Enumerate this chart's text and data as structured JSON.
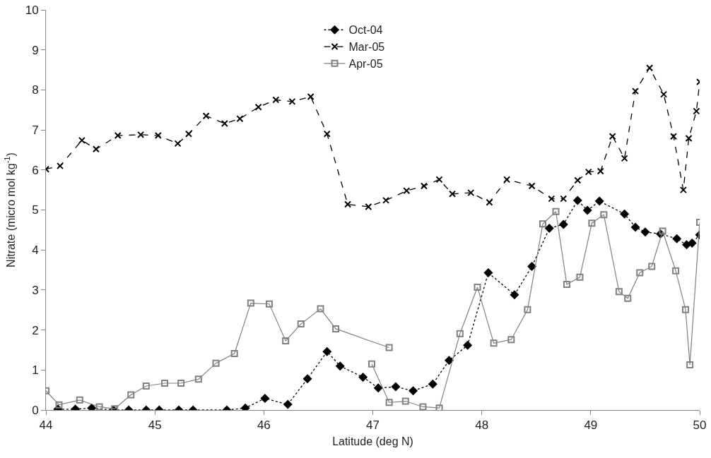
{
  "chart_data": {
    "type": "line",
    "xlabel": "Latitude (deg N)",
    "ylabel": "Nitrate (micro mol kg$^{-1}$)",
    "xlim": [
      44,
      50
    ],
    "xticks": [
      44,
      45,
      46,
      47,
      48,
      49,
      50
    ],
    "ylim": [
      0,
      10
    ],
    "yticks": [
      0,
      1,
      2,
      3,
      4,
      5,
      6,
      7,
      8,
      9,
      10
    ],
    "grid": false,
    "legend": "top",
    "series": [
      {
        "name": "Oct-04",
        "color": "#000000",
        "marker": "diamond",
        "line_style": "dotted",
        "x": [
          44.11,
          44.27,
          44.42,
          44.62,
          44.76,
          44.92,
          45.04,
          45.22,
          45.35,
          45.66,
          45.83,
          46.01,
          46.22,
          46.4,
          46.58,
          46.7,
          46.91,
          47.05,
          47.21,
          47.37,
          47.55,
          47.7,
          47.87,
          48.06,
          48.3,
          48.46,
          48.62,
          48.75,
          48.88,
          48.97,
          49.08,
          49.31,
          49.41,
          49.5,
          49.64,
          49.79,
          49.88,
          49.93,
          50
        ],
        "values": [
          0.02,
          0.02,
          0.05,
          0,
          0,
          0,
          0,
          0,
          0,
          0,
          0.05,
          0.29,
          0.14,
          0.78,
          1.46,
          1.1,
          0.82,
          0.55,
          0.58,
          0.48,
          0.65,
          1.24,
          1.62,
          3.43,
          2.88,
          3.59,
          4.54,
          4.64,
          5.24,
          4.99,
          5.22,
          4.9,
          4.57,
          4.45,
          4.4,
          4.28,
          4.13,
          4.17,
          4.38
        ]
      },
      {
        "name": "Mar-05",
        "color": "#000000",
        "marker": "cross",
        "line_style": "dashed",
        "x": [
          44,
          44.13,
          44.33,
          44.46,
          44.66,
          44.87,
          45.03,
          45.21,
          45.31,
          45.47,
          45.64,
          45.78,
          45.95,
          46.11,
          46.26,
          46.43,
          46.58,
          46.77,
          46.96,
          47.12,
          47.31,
          47.47,
          47.61,
          47.73,
          47.9,
          48.07,
          48.23,
          48.46,
          48.64,
          48.75,
          48.88,
          48.98,
          49.09,
          49.2,
          49.31,
          49.41,
          49.54,
          49.67,
          49.76,
          49.85,
          49.9,
          49.97,
          50
        ],
        "values": [
          6.02,
          6.1,
          6.74,
          6.52,
          6.86,
          6.88,
          6.86,
          6.66,
          6.9,
          7.35,
          7.16,
          7.28,
          7.57,
          7.75,
          7.71,
          7.83,
          6.9,
          5.14,
          5.08,
          5.24,
          5.48,
          5.6,
          5.76,
          5.4,
          5.43,
          5.19,
          5.76,
          5.6,
          5.28,
          5.28,
          5.74,
          5.95,
          5.97,
          6.84,
          6.29,
          7.97,
          8.55,
          7.89,
          6.84,
          5.5,
          6.79,
          7.47,
          8.2
        ]
      },
      {
        "name": "Apr-05",
        "color": "#808080",
        "marker": "square",
        "line_style": "solid",
        "x": [
          44,
          44.12,
          44.31,
          44.49,
          44.63,
          44.78,
          44.92,
          45.09,
          45.24,
          45.4,
          45.56,
          45.73,
          45.88,
          46.05,
          46.2,
          46.34,
          46.52,
          46.66,
          47.15,
          47.07,
          46.99,
          47.15,
          47.3,
          47.46,
          47.61,
          47.8,
          47.96,
          48.11,
          48.27,
          48.42,
          48.56,
          48.68,
          48.78,
          48.9,
          49.01,
          49.12,
          49.26,
          49.34,
          49.45,
          49.56,
          49.66,
          49.78,
          49.87,
          49.91,
          50
        ],
        "values": [
          0.48,
          0.13,
          0.25,
          0.08,
          0.03,
          0.38,
          0.6,
          0.67,
          0.67,
          0.77,
          1.17,
          1.41,
          2.67,
          2.65,
          1.73,
          2.15,
          2.53,
          2.03,
          1.56,
          null,
          1.15,
          0.19,
          0.22,
          0.08,
          0.05,
          1.91,
          3.07,
          1.67,
          1.76,
          2.51,
          4.65,
          4.96,
          3.14,
          3.32,
          4.67,
          4.88,
          2.96,
          2.79,
          3.43,
          3.59,
          4.47,
          3.48,
          2.51,
          1.13,
          4.69
        ]
      }
    ]
  }
}
